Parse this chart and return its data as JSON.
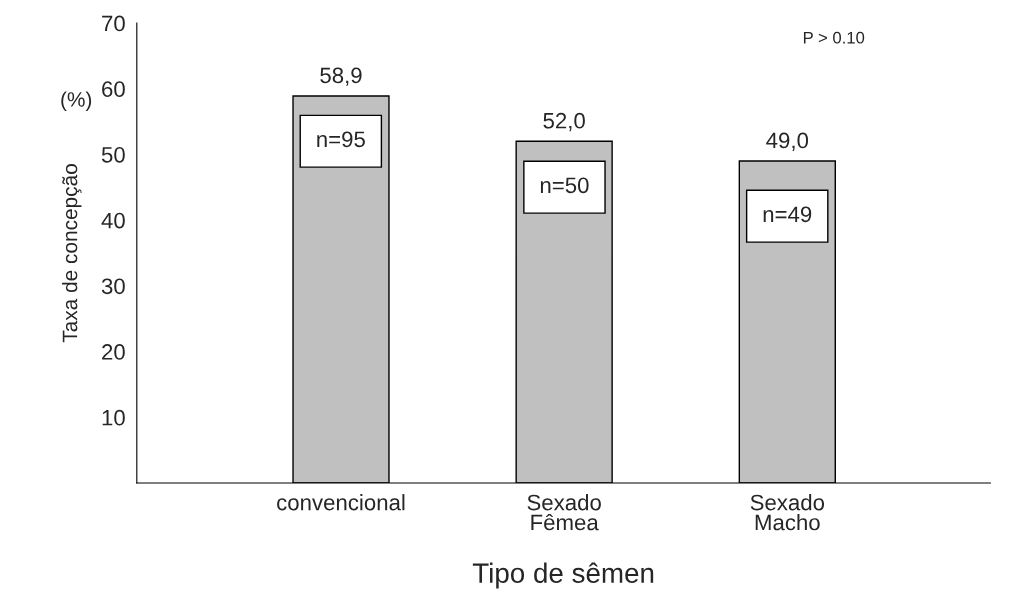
{
  "chart_data": {
    "type": "bar",
    "xlabel": "Tipo de sêmen",
    "ylabel": "Taxa de concepção",
    "categories": [
      "convencional",
      "Sexado\nFêmea",
      "Sexado\nMacho"
    ],
    "values": [
      58.9,
      52.0,
      49.0
    ],
    "value_labels": [
      "58,9",
      "52,0",
      "49,0"
    ],
    "color": "#c0c0c0",
    "ylim": [
      0,
      70
    ],
    "yticks": [
      10,
      20,
      30,
      40,
      50,
      60,
      70
    ],
    "grid": false,
    "annotations": [
      "(%)",
      "P > 0.10",
      "n=95",
      "n=50",
      "n=49"
    ]
  }
}
